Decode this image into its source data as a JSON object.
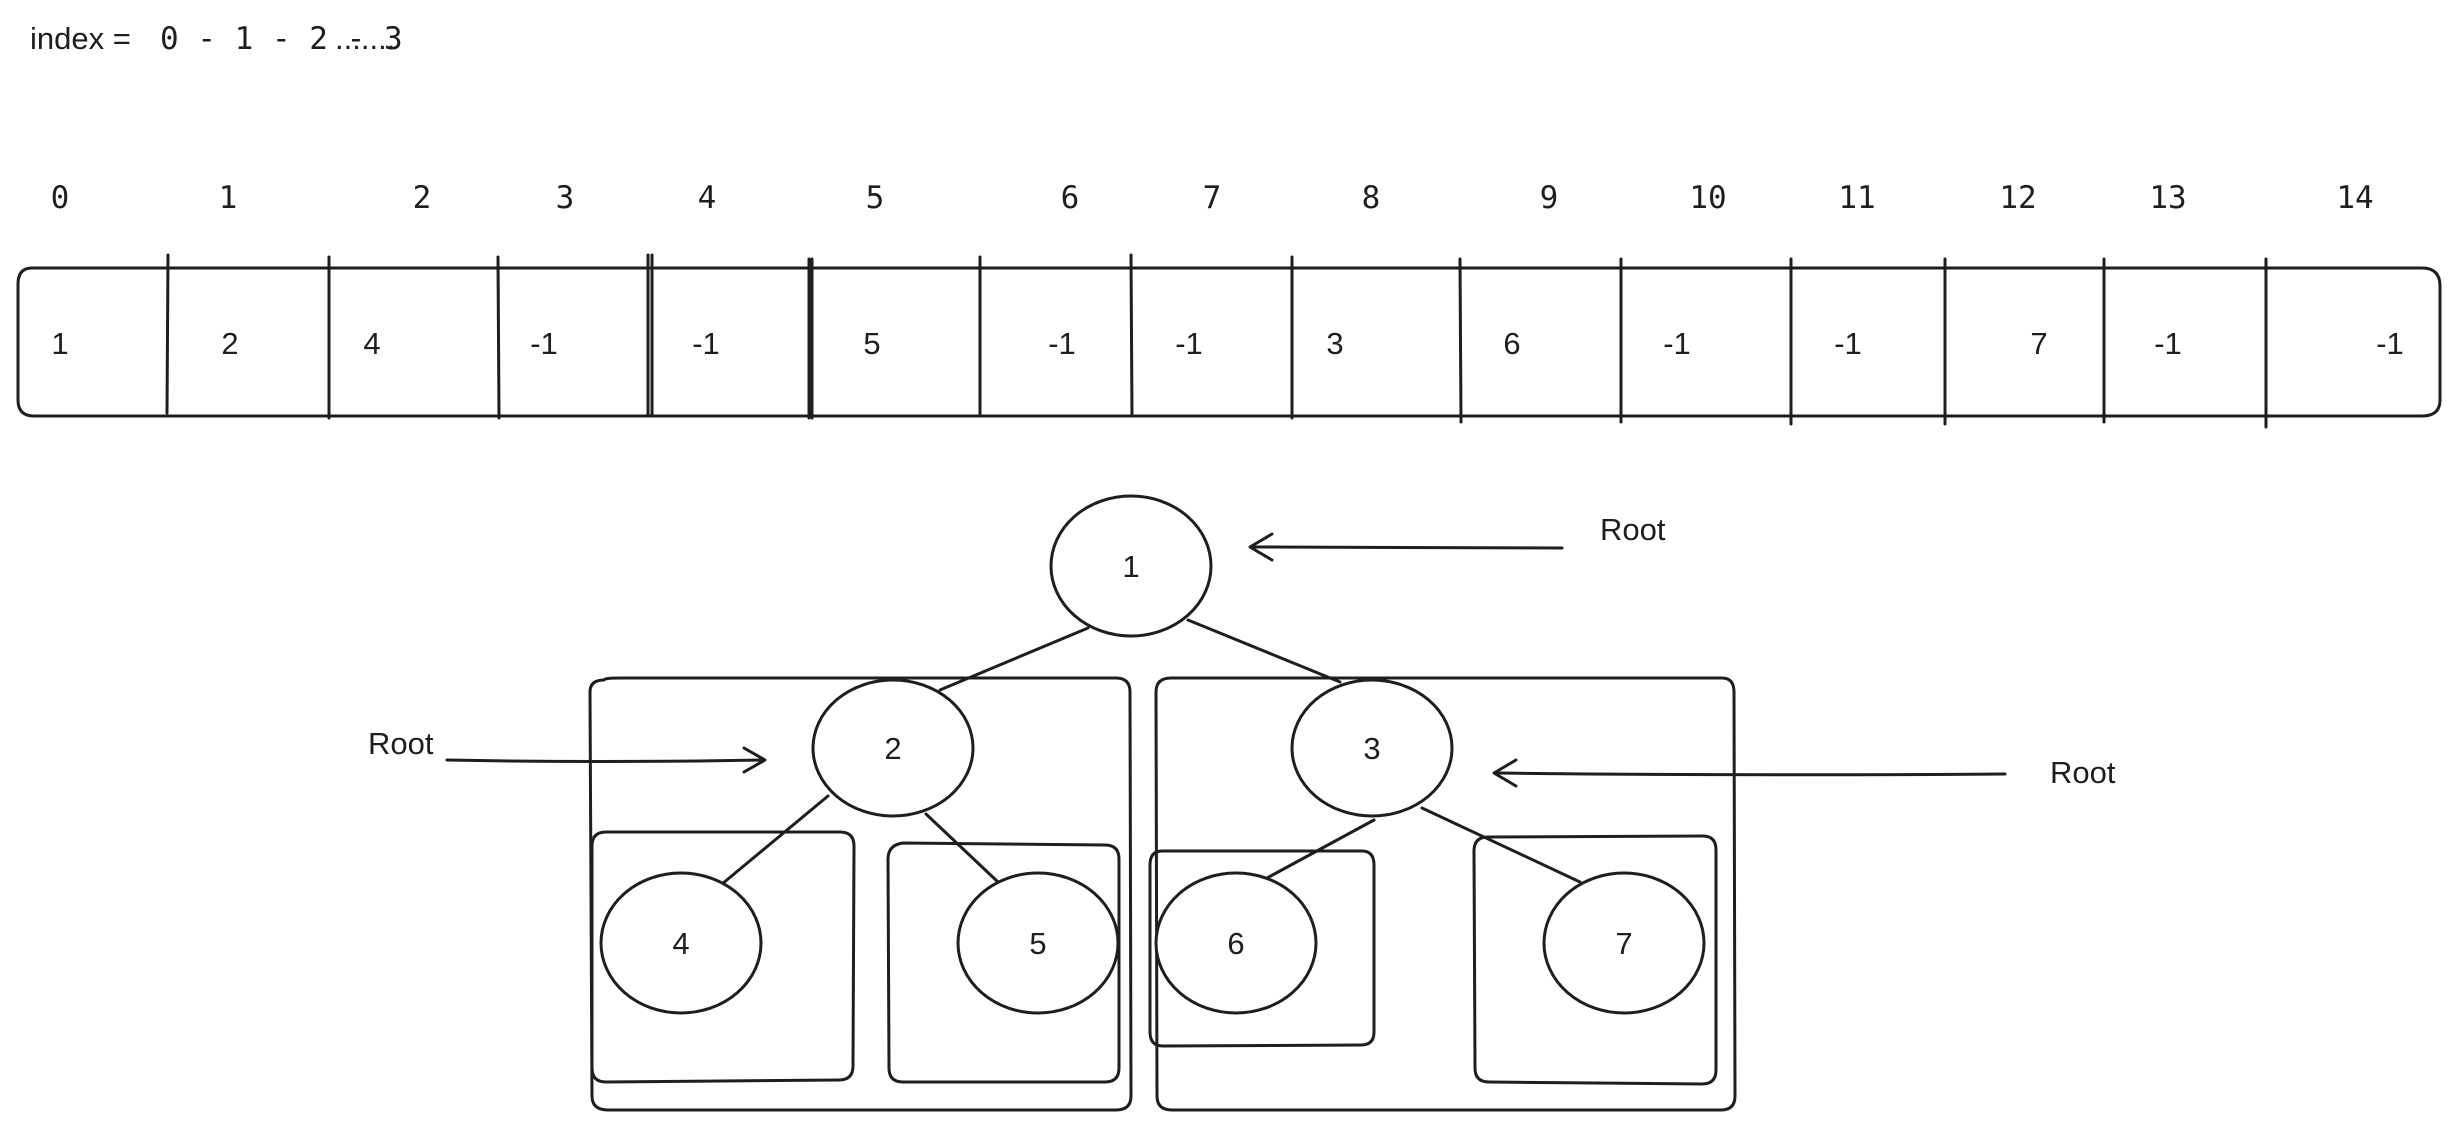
{
  "heading": {
    "prefix": "index  =",
    "sequence": "0 - 1  - 2 - 3",
    "ellipsis": "......."
  },
  "array": {
    "indices": [
      "0",
      "1",
      "2",
      "3",
      "4",
      "5",
      "6",
      "7",
      "8",
      "9",
      "10",
      "11",
      "12",
      "13",
      "14"
    ],
    "values": [
      "1",
      "2",
      "4",
      "-1",
      "-1",
      "5",
      "-1",
      "-1",
      "3",
      "6",
      "-1",
      "-1",
      "7",
      "-1",
      "-1"
    ]
  },
  "tree": {
    "nodes": [
      "1",
      "2",
      "3",
      "4",
      "5",
      "6",
      "7"
    ],
    "root_labels": [
      "Root",
      "Root",
      "Root"
    ]
  }
}
